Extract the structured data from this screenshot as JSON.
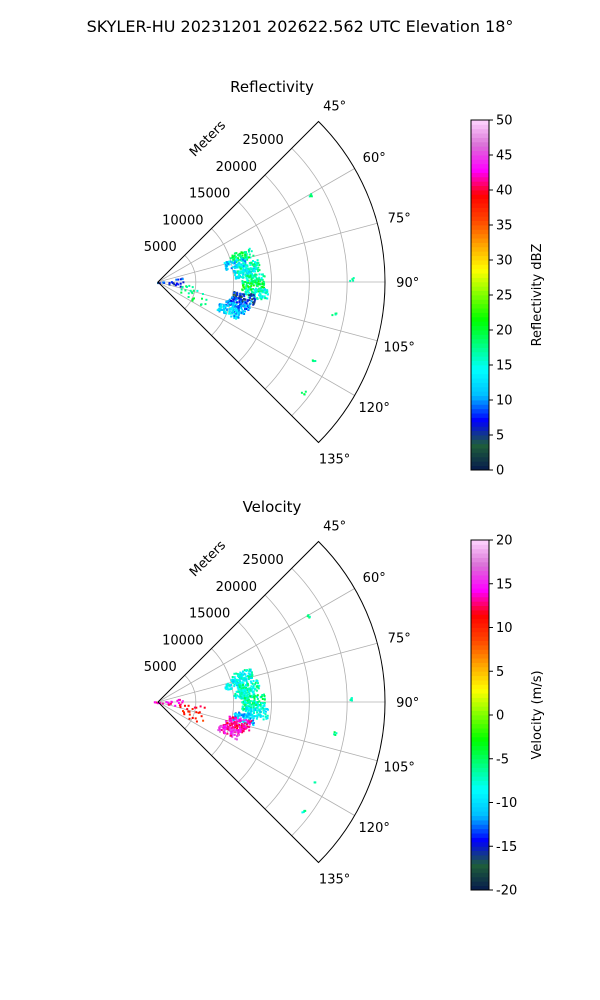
{
  "figure": {
    "suptitle": "SKYLER-HU  20231201  202622.562 UTC Elevation 18°"
  },
  "chart_data": [
    {
      "type": "polar-ppi",
      "title": "Reflectivity",
      "radial_label": "Meters",
      "r_max": 30000,
      "r_ticks": [
        5000,
        10000,
        15000,
        20000,
        25000
      ],
      "theta_range_deg": [
        45,
        135
      ],
      "theta_ticks": [
        "45°",
        "60°",
        "75°",
        "90°",
        "105°",
        "120°",
        "135°"
      ],
      "colorbar": {
        "label": "Reflectivity dBZ",
        "range": [
          0,
          50
        ],
        "ticks": [
          0,
          5,
          10,
          15,
          20,
          25,
          30,
          35,
          40,
          45,
          50
        ],
        "colormap": [
          "#061a4d",
          "#1f5f3a",
          "#0000ff",
          "#00bfff",
          "#00ffff",
          "#00ff80",
          "#00ff00",
          "#7fff00",
          "#ffff00",
          "#ffa500",
          "#ff4500",
          "#ff0000",
          "#ff00ff",
          "#da70d6",
          "#ffd6ff"
        ]
      },
      "echo_clusters": [
        {
          "theta_deg": 72,
          "r_m": 11500,
          "value": 18
        },
        {
          "theta_deg": 76,
          "r_m": 10500,
          "value": 12
        },
        {
          "theta_deg": 80,
          "r_m": 12000,
          "value": 16
        },
        {
          "theta_deg": 84,
          "r_m": 11500,
          "value": 14
        },
        {
          "theta_deg": 88,
          "r_m": 12500,
          "value": 17
        },
        {
          "theta_deg": 92,
          "r_m": 12500,
          "value": 20
        },
        {
          "theta_deg": 96,
          "r_m": 13000,
          "value": 15
        },
        {
          "theta_deg": 100,
          "r_m": 11500,
          "value": 6
        },
        {
          "theta_deg": 104,
          "r_m": 11000,
          "value": 9
        },
        {
          "theta_deg": 108,
          "r_m": 10500,
          "value": 11
        },
        {
          "theta_deg": 112,
          "r_m": 10000,
          "value": 12
        },
        {
          "theta_deg": 85,
          "r_m": 1500,
          "value": 8
        },
        {
          "theta_deg": 95,
          "r_m": 1200,
          "value": 6
        },
        {
          "theta_deg": 100,
          "r_m": 4500,
          "value": 17
        },
        {
          "theta_deg": 112,
          "r_m": 5000,
          "value": 18
        },
        {
          "theta_deg": 60,
          "r_m": 23000,
          "value": 18
        },
        {
          "theta_deg": 89,
          "r_m": 25500,
          "value": 18
        },
        {
          "theta_deg": 100,
          "r_m": 23500,
          "value": 18
        },
        {
          "theta_deg": 117,
          "r_m": 23000,
          "value": 18
        },
        {
          "theta_deg": 127,
          "r_m": 24000,
          "value": 18
        }
      ]
    },
    {
      "type": "polar-ppi",
      "title": "Velocity",
      "radial_label": "Meters",
      "r_max": 30000,
      "r_ticks": [
        5000,
        10000,
        15000,
        20000,
        25000
      ],
      "theta_range_deg": [
        45,
        135
      ],
      "theta_ticks": [
        "45°",
        "60°",
        "75°",
        "90°",
        "105°",
        "120°",
        "135°"
      ],
      "colorbar": {
        "label": "Velocity (m/s)",
        "range": [
          -20,
          20
        ],
        "ticks": [
          -20,
          -15,
          -10,
          -5,
          0,
          5,
          10,
          15,
          20
        ],
        "colormap": [
          "#061a4d",
          "#1f5f3a",
          "#0000ff",
          "#00bfff",
          "#00ffff",
          "#00ff80",
          "#00ff00",
          "#7fff00",
          "#ffff00",
          "#ffa500",
          "#ff4500",
          "#ff0000",
          "#ff00ff",
          "#da70d6",
          "#ffd6ff"
        ]
      },
      "echo_clusters": [
        {
          "theta_deg": 72,
          "r_m": 11500,
          "value": -8
        },
        {
          "theta_deg": 76,
          "r_m": 10500,
          "value": -9
        },
        {
          "theta_deg": 80,
          "r_m": 12000,
          "value": -7
        },
        {
          "theta_deg": 84,
          "r_m": 11500,
          "value": -8
        },
        {
          "theta_deg": 88,
          "r_m": 12500,
          "value": -6
        },
        {
          "theta_deg": 92,
          "r_m": 12500,
          "value": -7
        },
        {
          "theta_deg": 96,
          "r_m": 13000,
          "value": -9
        },
        {
          "theta_deg": 100,
          "r_m": 11500,
          "value": -11
        },
        {
          "theta_deg": 104,
          "r_m": 11000,
          "value": 14
        },
        {
          "theta_deg": 108,
          "r_m": 10500,
          "value": 13
        },
        {
          "theta_deg": 112,
          "r_m": 10000,
          "value": 15
        },
        {
          "theta_deg": 85,
          "r_m": 1500,
          "value": 14
        },
        {
          "theta_deg": 95,
          "r_m": 1200,
          "value": 13
        },
        {
          "theta_deg": 100,
          "r_m": 4500,
          "value": 11
        },
        {
          "theta_deg": 112,
          "r_m": 5000,
          "value": 10
        },
        {
          "theta_deg": 60,
          "r_m": 23000,
          "value": -6
        },
        {
          "theta_deg": 89,
          "r_m": 25500,
          "value": -7
        },
        {
          "theta_deg": 100,
          "r_m": 23500,
          "value": -6
        },
        {
          "theta_deg": 117,
          "r_m": 23000,
          "value": -7
        },
        {
          "theta_deg": 127,
          "r_m": 24000,
          "value": -7
        }
      ]
    }
  ]
}
